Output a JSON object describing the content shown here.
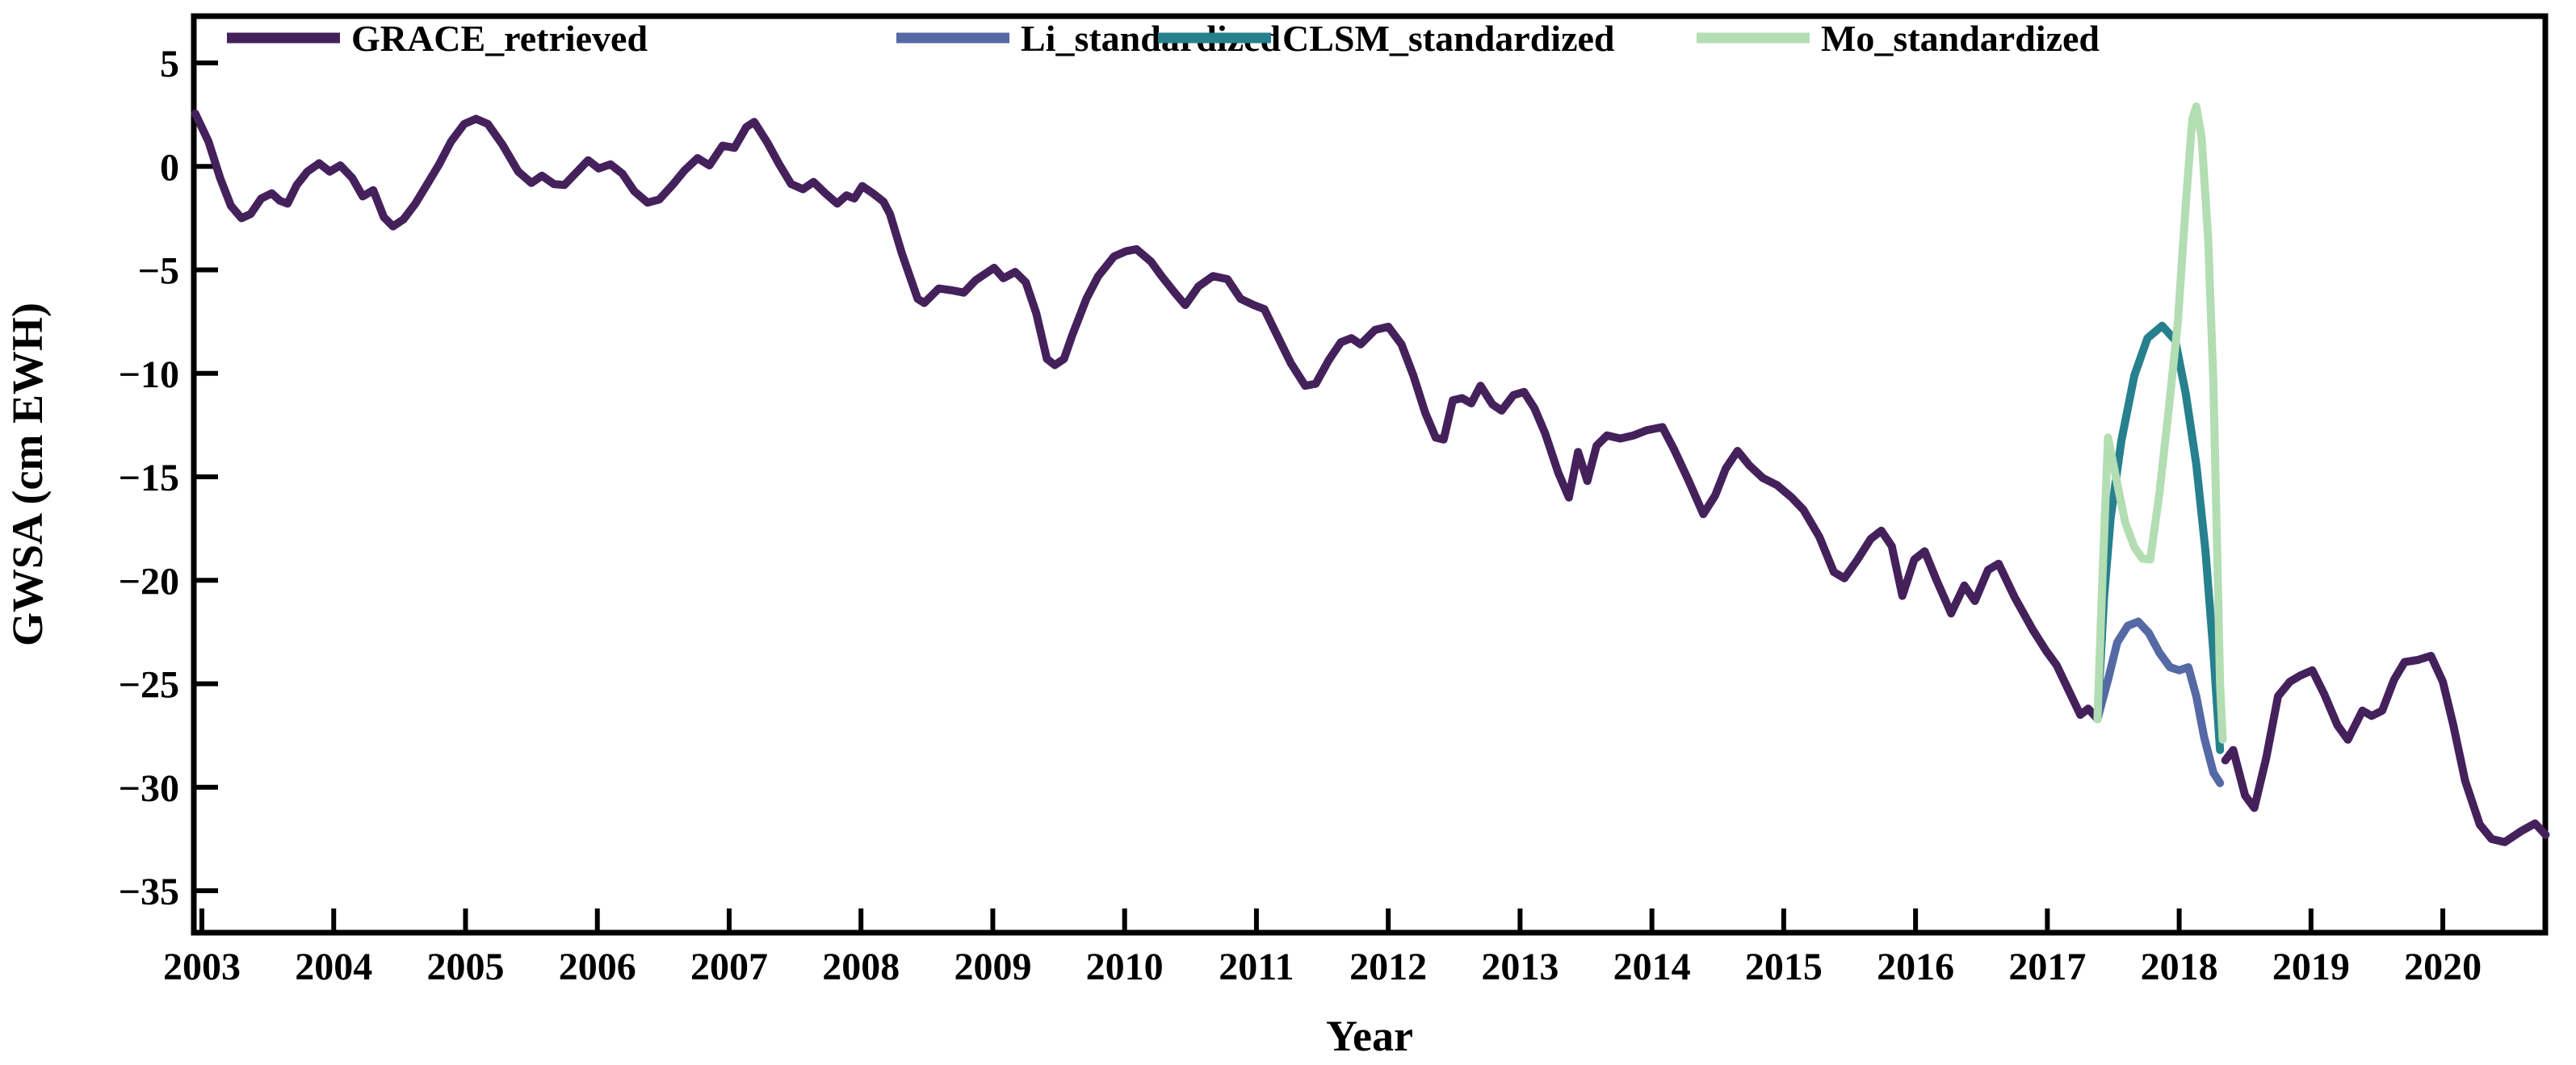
{
  "figure": {
    "background": "#ffffff",
    "axis_color": "#000000"
  },
  "chart_data": {
    "type": "line",
    "title": "",
    "xlabel": "Year",
    "ylabel": "GWSA (cm EWH)",
    "xlim": [
      2002.94,
      2020.78
    ],
    "ylim": [
      -37.0,
      7.3
    ],
    "grid": false,
    "legend_position": "top-left-horizontal",
    "x_ticks": {
      "values": [
        2003,
        2004,
        2005,
        2006,
        2007,
        2008,
        2009,
        2010,
        2011,
        2012,
        2013,
        2014,
        2015,
        2016,
        2017,
        2018,
        2019,
        2020
      ],
      "labels": [
        "2003",
        "2004",
        "2005",
        "2006",
        "2007",
        "2008",
        "2009",
        "2010",
        "2011",
        "2012",
        "2013",
        "2014",
        "2015",
        "2016",
        "2017",
        "2018",
        "2019",
        "2020"
      ]
    },
    "y_ticks": {
      "values": [
        5,
        0,
        -5,
        -10,
        -15,
        -20,
        -25,
        -30,
        -35
      ],
      "labels": [
        "5",
        "0",
        "−5",
        "−10",
        "−15",
        "−20",
        "−25",
        "−30",
        "−35"
      ]
    },
    "series": [
      {
        "name": "GRACE_retrieved",
        "color": "#45215c",
        "line_width": 10,
        "segments": [
          [
            [
              2002.95,
              2.55
            ],
            [
              2003.05,
              1.2
            ],
            [
              2003.14,
              -0.6
            ],
            [
              2003.22,
              -1.9
            ],
            [
              2003.3,
              -2.5
            ],
            [
              2003.37,
              -2.3
            ],
            [
              2003.45,
              -1.55
            ],
            [
              2003.53,
              -1.3
            ],
            [
              2003.59,
              -1.65
            ],
            [
              2003.65,
              -1.8
            ],
            [
              2003.72,
              -0.9
            ],
            [
              2003.8,
              -0.25
            ],
            [
              2003.89,
              0.15
            ],
            [
              2003.97,
              -0.25
            ],
            [
              2004.05,
              0.05
            ],
            [
              2004.14,
              -0.55
            ],
            [
              2004.22,
              -1.45
            ],
            [
              2004.3,
              -1.15
            ],
            [
              2004.38,
              -2.45
            ],
            [
              2004.45,
              -2.9
            ],
            [
              2004.53,
              -2.55
            ],
            [
              2004.62,
              -1.8
            ],
            [
              2004.71,
              -0.85
            ],
            [
              2004.8,
              0.1
            ],
            [
              2004.89,
              1.2
            ],
            [
              2004.99,
              2.05
            ],
            [
              2005.08,
              2.3
            ],
            [
              2005.17,
              2.05
            ],
            [
              2005.28,
              1.05
            ],
            [
              2005.4,
              -0.25
            ],
            [
              2005.5,
              -0.8
            ],
            [
              2005.58,
              -0.45
            ],
            [
              2005.67,
              -0.85
            ],
            [
              2005.75,
              -0.9
            ],
            [
              2005.84,
              -0.3
            ],
            [
              2005.93,
              0.3
            ],
            [
              2006.01,
              -0.1
            ],
            [
              2006.1,
              0.1
            ],
            [
              2006.19,
              -0.35
            ],
            [
              2006.28,
              -1.2
            ],
            [
              2006.38,
              -1.75
            ],
            [
              2006.47,
              -1.6
            ],
            [
              2006.57,
              -0.9
            ],
            [
              2006.66,
              -0.2
            ],
            [
              2006.76,
              0.4
            ],
            [
              2006.85,
              0.05
            ],
            [
              2006.95,
              1.0
            ],
            [
              2007.04,
              0.9
            ],
            [
              2007.13,
              1.9
            ],
            [
              2007.19,
              2.15
            ],
            [
              2007.29,
              1.15
            ],
            [
              2007.38,
              0.1
            ],
            [
              2007.47,
              -0.85
            ],
            [
              2007.56,
              -1.1
            ],
            [
              2007.64,
              -0.75
            ],
            [
              2007.73,
              -1.3
            ],
            [
              2007.82,
              -1.8
            ],
            [
              2007.89,
              -1.4
            ],
            [
              2007.95,
              -1.55
            ],
            [
              2008.01,
              -0.95
            ],
            [
              2008.09,
              -1.3
            ],
            [
              2008.17,
              -1.7
            ],
            [
              2008.22,
              -2.3
            ],
            [
              2008.31,
              -4.2
            ],
            [
              2008.43,
              -6.4
            ],
            [
              2008.48,
              -6.6
            ],
            [
              2008.59,
              -5.9
            ],
            [
              2008.7,
              -6.0
            ],
            [
              2008.78,
              -6.1
            ],
            [
              2008.87,
              -5.5
            ],
            [
              2009.01,
              -4.9
            ],
            [
              2009.08,
              -5.4
            ],
            [
              2009.17,
              -5.1
            ],
            [
              2009.25,
              -5.6
            ],
            [
              2009.33,
              -7.1
            ],
            [
              2009.41,
              -9.3
            ],
            [
              2009.47,
              -9.6
            ],
            [
              2009.54,
              -9.3
            ],
            [
              2009.6,
              -8.2
            ],
            [
              2009.71,
              -6.4
            ],
            [
              2009.8,
              -5.3
            ],
            [
              2009.92,
              -4.35
            ],
            [
              2010.01,
              -4.1
            ],
            [
              2010.09,
              -4.0
            ],
            [
              2010.2,
              -4.6
            ],
            [
              2010.28,
              -5.3
            ],
            [
              2010.38,
              -6.1
            ],
            [
              2010.46,
              -6.7
            ],
            [
              2010.56,
              -5.8
            ],
            [
              2010.67,
              -5.3
            ],
            [
              2010.78,
              -5.45
            ],
            [
              2010.88,
              -6.4
            ],
            [
              2010.98,
              -6.7
            ],
            [
              2011.06,
              -6.9
            ],
            [
              2011.16,
              -8.2
            ],
            [
              2011.26,
              -9.5
            ],
            [
              2011.37,
              -10.6
            ],
            [
              2011.45,
              -10.5
            ],
            [
              2011.55,
              -9.35
            ],
            [
              2011.64,
              -8.5
            ],
            [
              2011.72,
              -8.3
            ],
            [
              2011.79,
              -8.6
            ],
            [
              2011.9,
              -7.9
            ],
            [
              2012.0,
              -7.75
            ],
            [
              2012.1,
              -8.6
            ],
            [
              2012.19,
              -10.1
            ],
            [
              2012.28,
              -11.9
            ],
            [
              2012.36,
              -13.1
            ],
            [
              2012.42,
              -13.2
            ],
            [
              2012.49,
              -11.3
            ],
            [
              2012.56,
              -11.2
            ],
            [
              2012.63,
              -11.45
            ],
            [
              2012.7,
              -10.6
            ],
            [
              2012.79,
              -11.5
            ],
            [
              2012.86,
              -11.8
            ],
            [
              2012.95,
              -11.05
            ],
            [
              2013.03,
              -10.9
            ],
            [
              2013.11,
              -11.7
            ],
            [
              2013.19,
              -12.9
            ],
            [
              2013.29,
              -14.8
            ],
            [
              2013.37,
              -16.0
            ],
            [
              2013.44,
              -13.8
            ],
            [
              2013.51,
              -15.2
            ],
            [
              2013.58,
              -13.5
            ],
            [
              2013.66,
              -13.0
            ],
            [
              2013.76,
              -13.15
            ],
            [
              2013.86,
              -13.0
            ],
            [
              2013.96,
              -12.75
            ],
            [
              2014.08,
              -12.6
            ],
            [
              2014.17,
              -13.7
            ],
            [
              2014.28,
              -15.2
            ],
            [
              2014.39,
              -16.8
            ],
            [
              2014.48,
              -15.9
            ],
            [
              2014.56,
              -14.6
            ],
            [
              2014.65,
              -13.75
            ],
            [
              2014.74,
              -14.45
            ],
            [
              2014.84,
              -15.05
            ],
            [
              2014.95,
              -15.4
            ],
            [
              2015.06,
              -16.0
            ],
            [
              2015.15,
              -16.6
            ],
            [
              2015.27,
              -17.9
            ],
            [
              2015.38,
              -19.6
            ],
            [
              2015.46,
              -19.9
            ],
            [
              2015.56,
              -19.0
            ],
            [
              2015.66,
              -18.0
            ],
            [
              2015.74,
              -17.6
            ],
            [
              2015.82,
              -18.35
            ],
            [
              2015.9,
              -20.75
            ],
            [
              2015.99,
              -19.0
            ],
            [
              2016.07,
              -18.6
            ],
            [
              2016.16,
              -20.0
            ],
            [
              2016.27,
              -21.6
            ],
            [
              2016.37,
              -20.25
            ],
            [
              2016.45,
              -21.0
            ],
            [
              2016.55,
              -19.5
            ],
            [
              2016.63,
              -19.2
            ],
            [
              2016.75,
              -20.8
            ],
            [
              2016.89,
              -22.4
            ],
            [
              2016.99,
              -23.4
            ],
            [
              2017.07,
              -24.1
            ],
            [
              2017.16,
              -25.3
            ],
            [
              2017.25,
              -26.5
            ],
            [
              2017.31,
              -26.2
            ],
            [
              2017.38,
              -26.7
            ]
          ],
          [
            [
              2018.35,
              -28.7
            ],
            [
              2018.41,
              -28.2
            ],
            [
              2018.5,
              -30.4
            ],
            [
              2018.57,
              -31.0
            ],
            [
              2018.66,
              -28.6
            ],
            [
              2018.75,
              -25.6
            ],
            [
              2018.84,
              -24.9
            ],
            [
              2018.92,
              -24.6
            ],
            [
              2019.01,
              -24.35
            ],
            [
              2019.1,
              -25.5
            ],
            [
              2019.2,
              -27.0
            ],
            [
              2019.28,
              -27.7
            ],
            [
              2019.39,
              -26.3
            ],
            [
              2019.46,
              -26.55
            ],
            [
              2019.54,
              -26.3
            ],
            [
              2019.63,
              -24.8
            ],
            [
              2019.71,
              -23.95
            ],
            [
              2019.81,
              -23.85
            ],
            [
              2019.91,
              -23.65
            ],
            [
              2020.0,
              -24.9
            ],
            [
              2020.08,
              -27.0
            ],
            [
              2020.17,
              -29.7
            ],
            [
              2020.28,
              -31.8
            ],
            [
              2020.37,
              -32.5
            ],
            [
              2020.47,
              -32.65
            ],
            [
              2020.6,
              -32.1
            ],
            [
              2020.7,
              -31.75
            ],
            [
              2020.78,
              -32.3
            ]
          ]
        ]
      },
      {
        "name": "Li_standardized",
        "color": "#5569a5",
        "line_width": 10,
        "segments": [
          [
            [
              2017.38,
              -26.7
            ],
            [
              2017.46,
              -24.8
            ],
            [
              2017.53,
              -23.0
            ],
            [
              2017.61,
              -22.2
            ],
            [
              2017.69,
              -22.0
            ],
            [
              2017.77,
              -22.55
            ],
            [
              2017.85,
              -23.5
            ],
            [
              2017.93,
              -24.2
            ],
            [
              2018.0,
              -24.35
            ],
            [
              2018.07,
              -24.2
            ],
            [
              2018.13,
              -25.6
            ],
            [
              2018.19,
              -27.6
            ],
            [
              2018.26,
              -29.3
            ],
            [
              2018.31,
              -29.8
            ]
          ]
        ]
      },
      {
        "name": "CLSM_standardized",
        "color": "#26808d",
        "line_width": 10,
        "segments": [
          [
            [
              2017.38,
              -26.7
            ],
            [
              2017.43,
              -20.8
            ],
            [
              2017.48,
              -17.0
            ],
            [
              2017.56,
              -13.3
            ],
            [
              2017.66,
              -10.1
            ],
            [
              2017.76,
              -8.3
            ],
            [
              2017.87,
              -7.7
            ],
            [
              2017.97,
              -8.4
            ],
            [
              2018.05,
              -11.0
            ],
            [
              2018.13,
              -14.4
            ],
            [
              2018.2,
              -18.6
            ],
            [
              2018.26,
              -23.5
            ],
            [
              2018.31,
              -28.2
            ]
          ]
        ]
      },
      {
        "name": "Mo_standardized",
        "color": "#b3ddb2",
        "line_width": 10,
        "segments": [
          [
            [
              2017.38,
              -26.7
            ],
            [
              2017.42,
              -19.5
            ],
            [
              2017.46,
              -13.1
            ],
            [
              2017.52,
              -15.0
            ],
            [
              2017.59,
              -17.2
            ],
            [
              2017.66,
              -18.4
            ],
            [
              2017.72,
              -18.95
            ],
            [
              2017.78,
              -19.0
            ],
            [
              2017.85,
              -15.8
            ],
            [
              2017.92,
              -11.8
            ],
            [
              2017.99,
              -7.5
            ],
            [
              2018.05,
              -1.8
            ],
            [
              2018.1,
              2.3
            ],
            [
              2018.13,
              2.9
            ],
            [
              2018.17,
              1.4
            ],
            [
              2018.22,
              -3.5
            ],
            [
              2018.26,
              -10.5
            ],
            [
              2018.29,
              -19.0
            ],
            [
              2018.31,
              -25.0
            ],
            [
              2018.33,
              -27.7
            ]
          ]
        ]
      }
    ]
  }
}
